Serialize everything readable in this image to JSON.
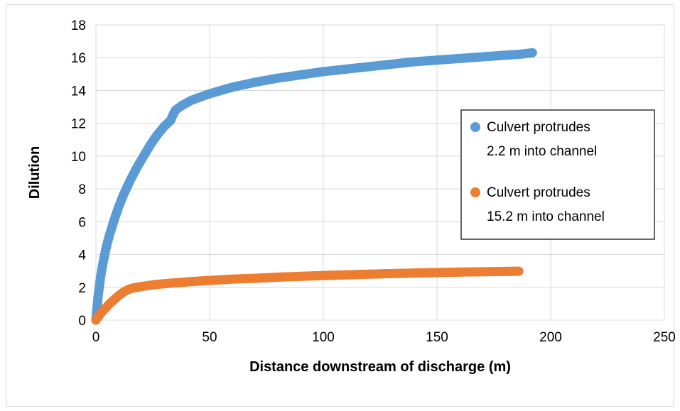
{
  "chart_data": {
    "type": "scatter",
    "title": "",
    "xlabel": "Distance downstream of discharge (m)",
    "ylabel": "Dilution",
    "xlim": [
      0,
      250
    ],
    "ylim": [
      0,
      18
    ],
    "xticks": [
      0,
      50,
      100,
      150,
      200,
      250
    ],
    "yticks": [
      0,
      2,
      4,
      6,
      8,
      10,
      12,
      14,
      16,
      18
    ],
    "grid": true,
    "legend_position": "right",
    "series": [
      {
        "name_lines": [
          "Culvert protrudes",
          "2.2 m into channel"
        ],
        "color": "#5b9bd5",
        "points": [
          [
            0,
            0
          ],
          [
            0.5,
            0.8
          ],
          [
            1,
            1.5
          ],
          [
            2,
            2.6
          ],
          [
            3,
            3.4
          ],
          [
            4,
            4.1
          ],
          [
            5,
            4.7
          ],
          [
            6,
            5.2
          ],
          [
            8,
            6.1
          ],
          [
            10,
            6.9
          ],
          [
            12,
            7.6
          ],
          [
            15,
            8.5
          ],
          [
            18,
            9.3
          ],
          [
            21,
            10.0
          ],
          [
            24,
            10.7
          ],
          [
            27,
            11.3
          ],
          [
            30,
            11.8
          ],
          [
            33,
            12.2
          ],
          [
            33.5,
            12.4
          ],
          [
            35,
            12.8
          ],
          [
            38,
            13.1
          ],
          [
            42,
            13.4
          ],
          [
            46,
            13.6
          ],
          [
            50,
            13.8
          ],
          [
            60,
            14.2
          ],
          [
            70,
            14.5
          ],
          [
            80,
            14.75
          ],
          [
            90,
            14.95
          ],
          [
            100,
            15.15
          ],
          [
            110,
            15.3
          ],
          [
            120,
            15.45
          ],
          [
            130,
            15.6
          ],
          [
            140,
            15.75
          ],
          [
            150,
            15.85
          ],
          [
            160,
            15.95
          ],
          [
            170,
            16.05
          ],
          [
            180,
            16.15
          ],
          [
            186,
            16.2
          ],
          [
            192,
            16.3
          ]
        ]
      },
      {
        "name_lines": [
          "Culvert protrudes",
          "15.2 m into channel"
        ],
        "color": "#ed7d31",
        "points": [
          [
            0,
            0
          ],
          [
            1,
            0.2
          ],
          [
            2,
            0.4
          ],
          [
            4,
            0.7
          ],
          [
            6,
            1.0
          ],
          [
            8,
            1.25
          ],
          [
            10,
            1.5
          ],
          [
            12,
            1.7
          ],
          [
            14,
            1.85
          ],
          [
            16,
            1.95
          ],
          [
            20,
            2.05
          ],
          [
            25,
            2.15
          ],
          [
            30,
            2.22
          ],
          [
            40,
            2.33
          ],
          [
            50,
            2.42
          ],
          [
            60,
            2.5
          ],
          [
            70,
            2.55
          ],
          [
            80,
            2.62
          ],
          [
            90,
            2.67
          ],
          [
            100,
            2.72
          ],
          [
            110,
            2.76
          ],
          [
            120,
            2.8
          ],
          [
            130,
            2.84
          ],
          [
            140,
            2.87
          ],
          [
            150,
            2.9
          ],
          [
            160,
            2.93
          ],
          [
            170,
            2.95
          ],
          [
            180,
            2.97
          ],
          [
            186,
            2.98
          ]
        ]
      }
    ]
  }
}
